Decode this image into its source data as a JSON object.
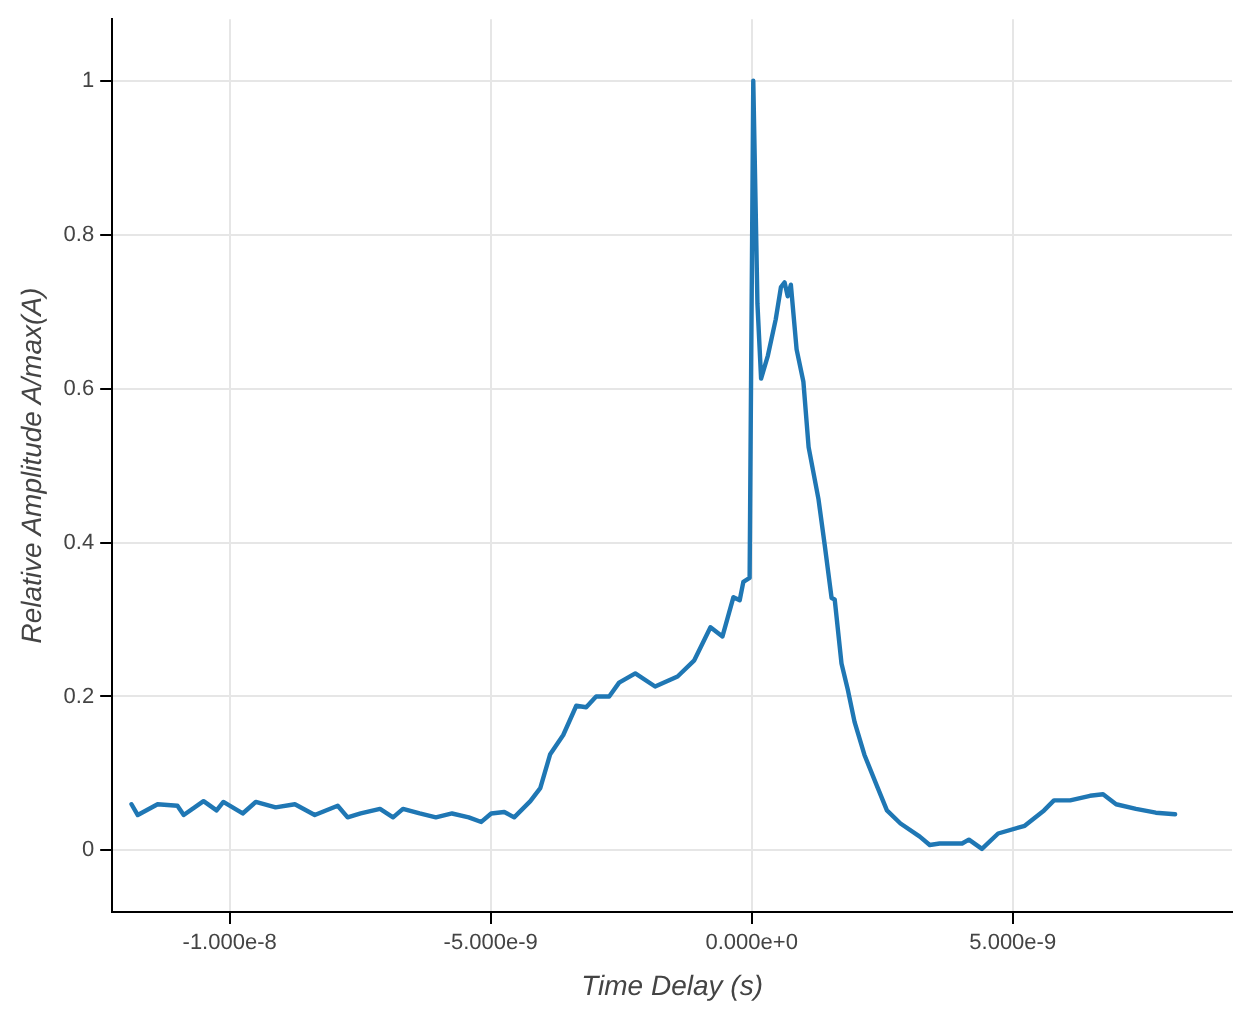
{
  "chart_data": {
    "type": "line",
    "xlabel": "Time Delay (s)",
    "ylabel": "Relative Amplitude A/max(A)",
    "xlim": [
      -1.225e-08,
      9.2e-09
    ],
    "ylim": [
      -0.08,
      1.08
    ],
    "xticks": [
      {
        "value": -1e-08,
        "label": "-1.000e-8"
      },
      {
        "value": -5e-09,
        "label": "-5.000e-9"
      },
      {
        "value": 0,
        "label": "0.000e+0"
      },
      {
        "value": 5e-09,
        "label": "5.000e-9"
      }
    ],
    "yticks": [
      0,
      0.2,
      0.4,
      0.6,
      0.8,
      1
    ],
    "grid": true,
    "marker": "none",
    "line_style": "solid",
    "series": [
      {
        "color": "#1f77b4",
        "x": [
          -1.188e-08,
          -1.176e-08,
          -1.138e-08,
          -1.1e-08,
          -1.088e-08,
          -1.05e-08,
          -1.025e-08,
          -1.012e-08,
          -9.75e-09,
          -9.5e-09,
          -9.12e-09,
          -8.75e-09,
          -8.37e-09,
          -7.93e-09,
          -7.74e-09,
          -7.49e-09,
          -7.12e-09,
          -6.87e-09,
          -6.68e-09,
          -6.36e-09,
          -6.05e-09,
          -5.74e-09,
          -5.42e-09,
          -5.18e-09,
          -4.99e-09,
          -4.74e-09,
          -4.55e-09,
          -4.24e-09,
          -4.05e-09,
          -3.86e-09,
          -3.61e-09,
          -3.36e-09,
          -3.17e-09,
          -2.98e-09,
          -2.73e-09,
          -2.54e-09,
          -2.23e-09,
          -1.85e-09,
          -1.42e-09,
          -1.1e-09,
          -7.9e-10,
          -5.6e-10,
          -3.5e-10,
          -2.3e-10,
          -1.6e-10,
          -4e-11,
          3e-11,
          1.1e-10,
          1.8e-10,
          3.1e-10,
          4.6e-10,
          5.6e-10,
          6.3e-10,
          6.9e-10,
          7.5e-10,
          8.6e-10,
          9.9e-10,
          1.09e-09,
          1.28e-09,
          1.4e-09,
          1.53e-09,
          1.59e-09,
          1.72e-09,
          1.84e-09,
          1.97e-09,
          2.16e-09,
          2.41e-09,
          2.59e-09,
          2.85e-09,
          3.22e-09,
          3.41e-09,
          3.6e-09,
          4.03e-09,
          4.16e-09,
          4.41e-09,
          4.72e-09,
          5.23e-09,
          5.6e-09,
          5.79e-09,
          6.1e-09,
          6.48e-09,
          6.73e-09,
          6.98e-09,
          7.36e-09,
          7.74e-09,
          8.11e-09
        ],
        "values": [
          0.06,
          0.046,
          0.06,
          0.058,
          0.046,
          0.064,
          0.052,
          0.063,
          0.048,
          0.063,
          0.056,
          0.06,
          0.046,
          0.058,
          0.043,
          0.048,
          0.054,
          0.043,
          0.054,
          0.048,
          0.043,
          0.048,
          0.043,
          0.037,
          0.048,
          0.05,
          0.043,
          0.064,
          0.081,
          0.125,
          0.15,
          0.188,
          0.186,
          0.2,
          0.2,
          0.218,
          0.23,
          0.213,
          0.226,
          0.247,
          0.29,
          0.278,
          0.329,
          0.325,
          0.349,
          0.354,
          1.0,
          0.71,
          0.613,
          0.643,
          0.69,
          0.732,
          0.738,
          0.72,
          0.735,
          0.651,
          0.609,
          0.524,
          0.456,
          0.396,
          0.328,
          0.326,
          0.243,
          0.209,
          0.167,
          0.124,
          0.082,
          0.052,
          0.035,
          0.018,
          0.007,
          0.009,
          0.009,
          0.014,
          0.002,
          0.022,
          0.032,
          0.052,
          0.065,
          0.065,
          0.071,
          0.073,
          0.06,
          0.054,
          0.049,
          0.047
        ]
      }
    ]
  }
}
